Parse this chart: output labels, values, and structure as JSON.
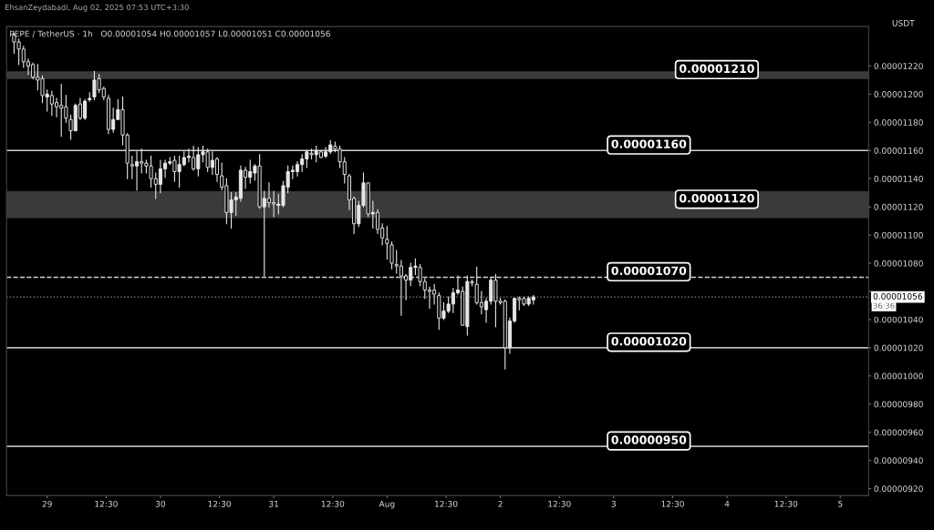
{
  "chart_data": {
    "type": "candlestick",
    "title": "PEPE / TetherUS · 1h",
    "subtitle": "O0.00001054 H0.00001057 L0.00001051 C0.00001056",
    "ylabel": "USDT",
    "annotations": [
      "EhsanZeydabadi, Aug 02, 2025 07:53 UTC+3:30",
      "36:36"
    ],
    "x": [
      "2025-07-28T17:00",
      "2025-07-28T18:00",
      "2025-07-28T19:00",
      "2025-07-28T20:00",
      "2025-07-28T21:00",
      "2025-07-28T22:00",
      "2025-07-28T23:00",
      "2025-07-29T00:00",
      "2025-07-29T01:00",
      "2025-07-29T02:00",
      "2025-07-29T03:00",
      "2025-07-29T04:00",
      "2025-07-29T05:00",
      "2025-07-29T06:00",
      "2025-07-29T07:00",
      "2025-07-29T08:00",
      "2025-07-29T09:00",
      "2025-07-29T10:00",
      "2025-07-29T11:00",
      "2025-07-29T12:00",
      "2025-07-29T13:00",
      "2025-07-29T14:00",
      "2025-07-29T15:00",
      "2025-07-29T16:00",
      "2025-07-29T17:00",
      "2025-07-29T18:00",
      "2025-07-29T19:00",
      "2025-07-29T20:00",
      "2025-07-29T21:00",
      "2025-07-29T22:00",
      "2025-07-29T23:00",
      "2025-07-30T00:00",
      "2025-07-30T01:00",
      "2025-07-30T02:00",
      "2025-07-30T03:00",
      "2025-07-30T04:00",
      "2025-07-30T05:00",
      "2025-07-30T06:00",
      "2025-07-30T07:00",
      "2025-07-30T08:00",
      "2025-07-30T09:00",
      "2025-07-30T10:00",
      "2025-07-30T11:00",
      "2025-07-30T12:00",
      "2025-07-30T13:00",
      "2025-07-30T14:00",
      "2025-07-30T15:00",
      "2025-07-30T16:00",
      "2025-07-30T17:00",
      "2025-07-30T18:00",
      "2025-07-30T19:00",
      "2025-07-30T20:00",
      "2025-07-30T21:00",
      "2025-07-30T22:00",
      "2025-07-30T23:00",
      "2025-07-31T00:00",
      "2025-07-31T01:00",
      "2025-07-31T02:00",
      "2025-07-31T03:00",
      "2025-07-31T04:00",
      "2025-07-31T05:00",
      "2025-07-31T06:00",
      "2025-07-31T07:00",
      "2025-07-31T08:00",
      "2025-07-31T09:00",
      "2025-07-31T10:00",
      "2025-07-31T11:00",
      "2025-07-31T12:00",
      "2025-07-31T13:00",
      "2025-07-31T14:00",
      "2025-07-31T15:00",
      "2025-07-31T16:00",
      "2025-07-31T17:00",
      "2025-07-31T18:00",
      "2025-07-31T19:00",
      "2025-07-31T20:00",
      "2025-07-31T21:00",
      "2025-07-31T22:00",
      "2025-07-31T23:00",
      "2025-08-01T00:00",
      "2025-08-01T01:00",
      "2025-08-01T02:00",
      "2025-08-01T03:00",
      "2025-08-01T04:00",
      "2025-08-01T05:00",
      "2025-08-01T06:00",
      "2025-08-01T07:00",
      "2025-08-01T08:00",
      "2025-08-01T09:00",
      "2025-08-01T10:00",
      "2025-08-01T11:00",
      "2025-08-01T12:00",
      "2025-08-01T13:00",
      "2025-08-01T14:00",
      "2025-08-01T15:00",
      "2025-08-01T16:00",
      "2025-08-01T17:00",
      "2025-08-01T18:00",
      "2025-08-01T19:00",
      "2025-08-01T20:00",
      "2025-08-01T21:00",
      "2025-08-01T22:00",
      "2025-08-01T23:00",
      "2025-08-02T00:00",
      "2025-08-02T01:00",
      "2025-08-02T02:00",
      "2025-08-02T03:00",
      "2025-08-02T04:00",
      "2025-08-02T05:00",
      "2025-08-02T06:00",
      "2025-08-02T07:00"
    ],
    "series": [
      {
        "color": "#e6e6e6",
        "ohlc": [
          [
            1.242e-05,
            1.243e-05,
            1.229e-05,
            1.237e-05
          ],
          [
            1.237e-05,
            1.239e-05,
            1.221e-05,
            1.232e-05
          ],
          [
            1.232e-05,
            1.234e-05,
            1.219e-05,
            1.223e-05
          ],
          [
            1.223e-05,
            1.225e-05,
            1.214e-05,
            1.22e-05
          ],
          [
            1.221e-05,
            1.222e-05,
            1.211e-05,
            1.212e-05
          ],
          [
            1.212e-05,
            1.221e-05,
            1.203e-05,
            1.21e-05
          ],
          [
            1.211e-05,
            1.213e-05,
            1.194e-05,
            1.199e-05
          ],
          [
            1.198e-05,
            1.203e-05,
            1.188e-05,
            1.2e-05
          ],
          [
            1.199e-05,
            1.202e-05,
            1.185e-05,
            1.193e-05
          ],
          [
            1.194e-05,
            1.197e-05,
            1.184e-05,
            1.191e-05
          ],
          [
            1.192e-05,
            1.207e-05,
            1.17e-05,
            1.19e-05
          ],
          [
            1.191e-05,
            1.199e-05,
            1.18e-05,
            1.183e-05
          ],
          [
            1.182e-05,
            1.185e-05,
            1.168e-05,
            1.174e-05
          ],
          [
            1.174e-05,
            1.193e-05,
            1.174e-05,
            1.192e-05
          ],
          [
            1.193e-05,
            1.197e-05,
            1.182e-05,
            1.183e-05
          ],
          [
            1.183e-05,
            1.196e-05,
            1.182e-05,
            1.195e-05
          ],
          [
            1.196e-05,
            1.201e-05,
            1.195e-05,
            1.197e-05
          ],
          [
            1.198e-05,
            1.216e-05,
            1.196e-05,
            1.21e-05
          ],
          [
            1.211e-05,
            1.214e-05,
            1.201e-05,
            1.203e-05
          ],
          [
            1.204e-05,
            1.205e-05,
            1.196e-05,
            1.198e-05
          ],
          [
            1.197e-05,
            1.199e-05,
            1.172e-05,
            1.175e-05
          ],
          [
            1.175e-05,
            1.19e-05,
            1.173e-05,
            1.182e-05
          ],
          [
            1.182e-05,
            1.196e-05,
            1.182e-05,
            1.189e-05
          ],
          [
            1.189e-05,
            1.198e-05,
            1.164e-05,
            1.171e-05
          ],
          [
            1.171e-05,
            1.172e-05,
            1.14e-05,
            1.151e-05
          ],
          [
            1.15e-05,
            1.156e-05,
            1.14e-05,
            1.149e-05
          ],
          [
            1.149e-05,
            1.159e-05,
            1.132e-05,
            1.152e-05
          ],
          [
            1.152e-05,
            1.161e-05,
            1.144e-05,
            1.151e-05
          ],
          [
            1.151e-05,
            1.153e-05,
            1.144e-05,
            1.149e-05
          ],
          [
            1.149e-05,
            1.156e-05,
            1.134e-05,
            1.14e-05
          ],
          [
            1.14e-05,
            1.144e-05,
            1.126e-05,
            1.136e-05
          ],
          [
            1.136e-05,
            1.153e-05,
            1.13e-05,
            1.147e-05
          ],
          [
            1.147e-05,
            1.153e-05,
            1.141e-05,
            1.151e-05
          ],
          [
            1.151e-05,
            1.155e-05,
            1.15e-05,
            1.152e-05
          ],
          [
            1.153e-05,
            1.156e-05,
            1.138e-05,
            1.145e-05
          ],
          [
            1.145e-05,
            1.156e-05,
            1.134e-05,
            1.15e-05
          ],
          [
            1.15e-05,
            1.159e-05,
            1.149e-05,
            1.155e-05
          ],
          [
            1.155e-05,
            1.161e-05,
            1.152e-05,
            1.156e-05
          ],
          [
            1.155e-05,
            1.163e-05,
            1.146e-05,
            1.147e-05
          ],
          [
            1.147e-05,
            1.162e-05,
            1.142e-05,
            1.157e-05
          ],
          [
            1.157e-05,
            1.163e-05,
            1.152e-05,
            1.159e-05
          ],
          [
            1.159e-05,
            1.161e-05,
            1.145e-05,
            1.148e-05
          ],
          [
            1.148e-05,
            1.159e-05,
            1.143e-05,
            1.153e-05
          ],
          [
            1.154e-05,
            1.155e-05,
            1.138e-05,
            1.143e-05
          ],
          [
            1.142e-05,
            1.151e-05,
            1.132e-05,
            1.134e-05
          ],
          [
            1.135e-05,
            1.14e-05,
            1.108e-05,
            1.116e-05
          ],
          [
            1.116e-05,
            1.13e-05,
            1.105e-05,
            1.125e-05
          ],
          [
            1.125e-05,
            1.13e-05,
            1.114e-05,
            1.127e-05
          ],
          [
            1.126e-05,
            1.149e-05,
            1.124e-05,
            1.146e-05
          ],
          [
            1.146e-05,
            1.148e-05,
            1.133e-05,
            1.141e-05
          ],
          [
            1.141e-05,
            1.153e-05,
            1.137e-05,
            1.145e-05
          ],
          [
            1.144e-05,
            1.15e-05,
            1.139e-05,
            1.149e-05
          ],
          [
            1.149e-05,
            1.157e-05,
            1.119e-05,
            1.12e-05
          ],
          [
            1.12e-05,
            1.131e-05,
            1.071e-05,
            1.126e-05
          ],
          [
            1.126e-05,
            1.137e-05,
            1.12e-05,
            1.123e-05
          ],
          [
            1.123e-05,
            1.131e-05,
            1.113e-05,
            1.122e-05
          ],
          [
            1.121e-05,
            1.129e-05,
            1.115e-05,
            1.122e-05
          ],
          [
            1.121e-05,
            1.138e-05,
            1.12e-05,
            1.135e-05
          ],
          [
            1.134e-05,
            1.149e-05,
            1.13e-05,
            1.145e-05
          ],
          [
            1.145e-05,
            1.149e-05,
            1.14e-05,
            1.146e-05
          ],
          [
            1.145e-05,
            1.152e-05,
            1.142e-05,
            1.15e-05
          ],
          [
            1.15e-05,
            1.157e-05,
            1.145e-05,
            1.154e-05
          ],
          [
            1.154e-05,
            1.16e-05,
            1.148e-05,
            1.159e-05
          ],
          [
            1.158e-05,
            1.161e-05,
            1.154e-05,
            1.157e-05
          ],
          [
            1.157e-05,
            1.163e-05,
            1.152e-05,
            1.16e-05
          ],
          [
            1.159e-05,
            1.16e-05,
            1.155e-05,
            1.155e-05
          ],
          [
            1.156e-05,
            1.162e-05,
            1.155e-05,
            1.159e-05
          ],
          [
            1.159e-05,
            1.167e-05,
            1.158e-05,
            1.164e-05
          ],
          [
            1.163e-05,
            1.166e-05,
            1.159e-05,
            1.161e-05
          ],
          [
            1.161e-05,
            1.163e-05,
            1.148e-05,
            1.152e-05
          ],
          [
            1.152e-05,
            1.155e-05,
            1.137e-05,
            1.143e-05
          ],
          [
            1.142e-05,
            1.143e-05,
            1.118e-05,
            1.125e-05
          ],
          [
            1.126e-05,
            1.127e-05,
            1.101e-05,
            1.108e-05
          ],
          [
            1.108e-05,
            1.124e-05,
            1.106e-05,
            1.121e-05
          ],
          [
            1.121e-05,
            1.144e-05,
            1.12e-05,
            1.137e-05
          ],
          [
            1.137e-05,
            1.137e-05,
            1.113e-05,
            1.115e-05
          ],
          [
            1.115e-05,
            1.124e-05,
            1.105e-05,
            1.116e-05
          ],
          [
            1.116e-05,
            1.118e-05,
            1.101e-05,
            1.104e-05
          ],
          [
            1.105e-05,
            1.108e-05,
            1.093e-05,
            1.098e-05
          ],
          [
            1.097e-05,
            1.106e-05,
            1.083e-05,
            1.094e-05
          ],
          [
            1.093e-05,
            1.095e-05,
            1.076e-05,
            1.08e-05
          ],
          [
            1.079e-05,
            1.089e-05,
            1.073e-05,
            1.078e-05
          ],
          [
            1.078e-05,
            1.082e-05,
            1.043e-05,
            1.071e-05
          ],
          [
            1.071e-05,
            1.072e-05,
            1.054e-05,
            1.068e-05
          ],
          [
            1.068e-05,
            1.08e-05,
            1.064e-05,
            1.077e-05
          ],
          [
            1.077e-05,
            1.083e-05,
            1.072e-05,
            1.078e-05
          ],
          [
            1.077e-05,
            1.079e-05,
            1.064e-05,
            1.067e-05
          ],
          [
            1.067e-05,
            1.069e-05,
            1.055e-05,
            1.061e-05
          ],
          [
            1.061e-05,
            1.063e-05,
            1.048e-05,
            1.06e-05
          ],
          [
            1.061e-05,
            1.065e-05,
            1.051e-05,
            1.058e-05
          ],
          [
            1.057e-05,
            1.059e-05,
            1.033e-05,
            1.041e-05
          ],
          [
            1.041e-05,
            1.052e-05,
            1.04e-05,
            1.046e-05
          ],
          [
            1.046e-05,
            1.056e-05,
            1.045e-05,
            1.051e-05
          ],
          [
            1.051e-05,
            1.062e-05,
            1.045e-05,
            1.059e-05
          ],
          [
            1.059e-05,
            1.071e-05,
            1.058e-05,
            1.061e-05
          ],
          [
            1.06e-05,
            1.063e-05,
            1.036e-05,
            1.036e-05
          ],
          [
            1.035e-05,
            1.071e-05,
            1.029e-05,
            1.067e-05
          ],
          [
            1.067e-05,
            1.068e-05,
            1.064e-05,
            1.066e-05
          ],
          [
            1.065e-05,
            1.077e-05,
            1.051e-05,
            1.052e-05
          ],
          [
            1.052e-05,
            1.06e-05,
            1.044e-05,
            1.049e-05
          ],
          [
            1.047e-05,
            1.055e-05,
            1.038e-05,
            1.053e-05
          ],
          [
            1.053e-05,
            1.07e-05,
            1.051e-05,
            1.068e-05
          ],
          [
            1.068e-05,
            1.072e-05,
            1.035e-05,
            1.053e-05
          ],
          [
            1.053e-05,
            1.055e-05,
            1.051e-05,
            1.052e-05
          ],
          [
            1.053e-05,
            1.054e-05,
            1.005e-05,
            1.02e-05
          ],
          [
            1.02e-05,
            1.041e-05,
            1.016e-05,
            1.039e-05
          ],
          [
            1.039e-05,
            1.055e-05,
            1.038e-05,
            1.055e-05
          ],
          [
            1.055e-05,
            1.056e-05,
            1.047e-05,
            1.054e-05
          ],
          [
            1.055e-05,
            1.056e-05,
            1.05e-05,
            1.051e-05
          ],
          [
            1.051e-05,
            1.056e-05,
            1.05e-05,
            1.055e-05
          ],
          [
            1.054e-05,
            1.057e-05,
            1.051e-05,
            1.056e-05
          ]
        ]
      }
    ],
    "xlim": [
      "2025-07-28T15:24",
      "2025-08-05T06:00"
    ],
    "ylim": [
      9.151e-06,
      1.248e-05
    ],
    "xticks": [
      {
        "value": "2025-07-29",
        "label": "29"
      },
      {
        "value": "2025-07-29T12:30",
        "label": "12:30"
      },
      {
        "value": "2025-07-30",
        "label": "30"
      },
      {
        "value": "2025-07-30T12:30",
        "label": "12:30"
      },
      {
        "value": "2025-07-31",
        "label": "31"
      },
      {
        "value": "2025-07-31T12:30",
        "label": "12:30"
      },
      {
        "value": "2025-08-01",
        "label": "Aug"
      },
      {
        "value": "2025-08-01T12:30",
        "label": "12:30"
      },
      {
        "value": "2025-08-02",
        "label": "2"
      },
      {
        "value": "2025-08-02T12:30",
        "label": "12:30"
      },
      {
        "value": "2025-08-03",
        "label": "3"
      },
      {
        "value": "2025-08-03T12:30",
        "label": "12:30"
      },
      {
        "value": "2025-08-04",
        "label": "4"
      },
      {
        "value": "2025-08-04T12:30",
        "label": "12:30"
      },
      {
        "value": "2025-08-05",
        "label": "5"
      }
    ],
    "yticks": [
      {
        "value": 9.2e-06,
        "label": "0.00000920"
      },
      {
        "value": 9.4e-06,
        "label": "0.00000940"
      },
      {
        "value": 9.6e-06,
        "label": "0.00000960"
      },
      {
        "value": 9.8e-06,
        "label": "0.00000980"
      },
      {
        "value": 1e-05,
        "label": "0.00001000"
      },
      {
        "value": 1.02e-05,
        "label": "0.00001020"
      },
      {
        "value": 1.04e-05,
        "label": "0.00001040"
      },
      {
        "value": 1.06e-05,
        "label": null
      },
      {
        "value": 1.08e-05,
        "label": "0.00001080"
      },
      {
        "value": 1.1e-05,
        "label": "0.00001100"
      },
      {
        "value": 1.12e-05,
        "label": "0.00001120"
      },
      {
        "value": 1.14e-05,
        "label": "0.00001140"
      },
      {
        "value": 1.16e-05,
        "label": "0.00001160"
      },
      {
        "value": 1.18e-05,
        "label": "0.00001180"
      },
      {
        "value": 1.2e-05,
        "label": "0.00001200"
      },
      {
        "value": 1.22e-05,
        "label": "0.00001220"
      }
    ],
    "bands": [
      {
        "axis": "y",
        "from": 1.2107e-05,
        "to": 1.2163e-05,
        "label": "0.00001210",
        "color": "#3a3a3a"
      },
      {
        "axis": "y",
        "from": 1.112e-05,
        "to": 1.131e-05,
        "label": "0.00001120",
        "color": "#3a3a3a"
      }
    ],
    "ref_lines": [
      {
        "axis": "y",
        "value": 1.16e-05,
        "label": "0.00001160",
        "color": "#d0d0d0",
        "line_style": "solid"
      },
      {
        "axis": "y",
        "value": 1.07e-05,
        "label": "0.00001070",
        "color": "#d0d0d0",
        "line_style": "dashed"
      },
      {
        "axis": "y",
        "value": 1.056e-05,
        "label": "0.00001056",
        "color": "#888888",
        "line_style": "dotted"
      },
      {
        "axis": "y",
        "value": 1.02e-05,
        "label": "0.00001020",
        "color": "#ffffff",
        "line_style": "solid"
      },
      {
        "axis": "y",
        "value": 9.5e-06,
        "label": "0.00000950",
        "color": "#ffffff",
        "line_style": "solid"
      }
    ],
    "grid": false,
    "legend": false
  }
}
